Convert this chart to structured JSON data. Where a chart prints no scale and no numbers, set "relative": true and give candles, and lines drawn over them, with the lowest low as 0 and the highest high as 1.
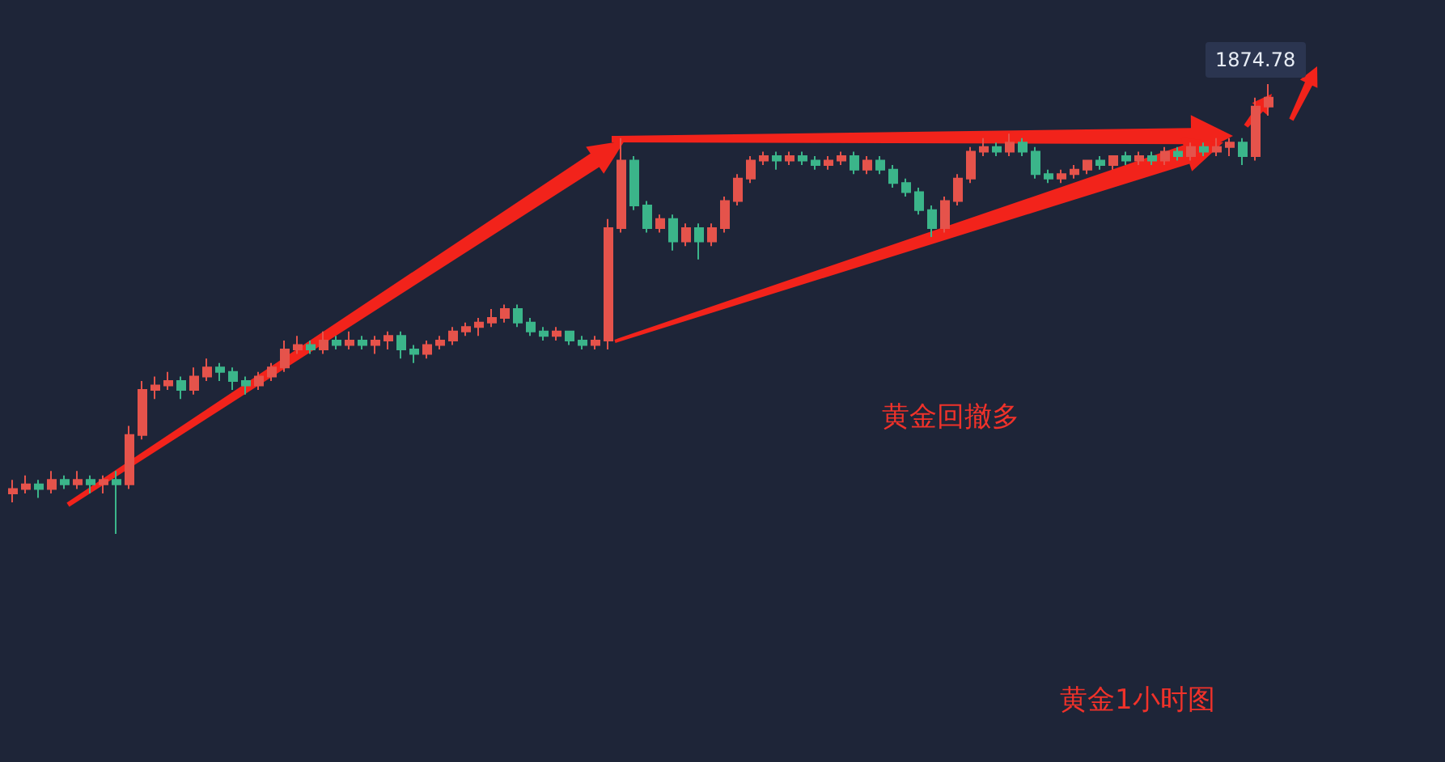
{
  "chart_data": {
    "type": "candlestick",
    "relative": true,
    "grid": false,
    "annotations": [
      "黄金回撤多",
      "黄金1小时图",
      "1874.78"
    ],
    "categories": [
      null,
      null,
      null,
      null,
      null,
      null,
      null,
      null,
      null,
      null,
      null,
      null,
      null,
      null,
      null,
      null,
      null,
      null,
      null,
      null,
      null,
      null,
      null,
      null,
      null,
      null,
      null,
      null,
      null,
      null,
      null,
      null,
      null,
      null,
      null,
      null,
      null,
      null,
      null,
      null,
      null,
      null,
      null,
      null,
      null,
      null,
      null,
      null,
      null,
      null,
      null,
      null,
      null,
      null,
      null,
      null,
      null,
      null,
      null,
      null,
      null,
      null,
      null,
      null,
      null,
      null,
      null,
      null,
      null,
      null,
      null,
      null,
      null,
      null,
      null,
      null,
      null,
      null,
      null,
      null,
      null,
      null,
      null,
      null,
      null,
      null,
      null,
      null,
      null,
      null,
      null,
      null,
      null,
      null,
      null,
      null,
      null,
      null
    ],
    "ohlc": [
      [
        0.09,
        0.12,
        0.07,
        0.1
      ],
      [
        0.1,
        0.13,
        0.09,
        0.11
      ],
      [
        0.11,
        0.12,
        0.08,
        0.1
      ],
      [
        0.1,
        0.14,
        0.09,
        0.12
      ],
      [
        0.12,
        0.13,
        0.1,
        0.11
      ],
      [
        0.11,
        0.14,
        0.1,
        0.12
      ],
      [
        0.12,
        0.13,
        0.09,
        0.11
      ],
      [
        0.11,
        0.13,
        0.09,
        0.12
      ],
      [
        0.12,
        0.14,
        0.0,
        0.11
      ],
      [
        0.11,
        0.24,
        0.1,
        0.22
      ],
      [
        0.22,
        0.34,
        0.21,
        0.32
      ],
      [
        0.32,
        0.35,
        0.3,
        0.33
      ],
      [
        0.33,
        0.36,
        0.32,
        0.34
      ],
      [
        0.34,
        0.35,
        0.3,
        0.32
      ],
      [
        0.32,
        0.37,
        0.31,
        0.35
      ],
      [
        0.35,
        0.39,
        0.34,
        0.37
      ],
      [
        0.37,
        0.38,
        0.34,
        0.36
      ],
      [
        0.36,
        0.37,
        0.32,
        0.34
      ],
      [
        0.34,
        0.35,
        0.31,
        0.33
      ],
      [
        0.33,
        0.36,
        0.32,
        0.35
      ],
      [
        0.35,
        0.38,
        0.34,
        0.37
      ],
      [
        0.37,
        0.43,
        0.36,
        0.41
      ],
      [
        0.41,
        0.44,
        0.4,
        0.42
      ],
      [
        0.42,
        0.43,
        0.4,
        0.41
      ],
      [
        0.41,
        0.45,
        0.4,
        0.43
      ],
      [
        0.43,
        0.44,
        0.41,
        0.42
      ],
      [
        0.42,
        0.45,
        0.41,
        0.43
      ],
      [
        0.43,
        0.44,
        0.41,
        0.42
      ],
      [
        0.42,
        0.44,
        0.4,
        0.43
      ],
      [
        0.43,
        0.45,
        0.41,
        0.44
      ],
      [
        0.44,
        0.45,
        0.39,
        0.41
      ],
      [
        0.41,
        0.42,
        0.38,
        0.4
      ],
      [
        0.4,
        0.43,
        0.39,
        0.42
      ],
      [
        0.42,
        0.44,
        0.41,
        0.43
      ],
      [
        0.43,
        0.46,
        0.42,
        0.45
      ],
      [
        0.45,
        0.47,
        0.44,
        0.46
      ],
      [
        0.46,
        0.48,
        0.44,
        0.47
      ],
      [
        0.47,
        0.5,
        0.46,
        0.48
      ],
      [
        0.48,
        0.51,
        0.47,
        0.5
      ],
      [
        0.5,
        0.51,
        0.46,
        0.47
      ],
      [
        0.47,
        0.48,
        0.44,
        0.45
      ],
      [
        0.45,
        0.46,
        0.43,
        0.44
      ],
      [
        0.44,
        0.46,
        0.43,
        0.45
      ],
      [
        0.45,
        0.45,
        0.42,
        0.43
      ],
      [
        0.43,
        0.44,
        0.41,
        0.42
      ],
      [
        0.42,
        0.44,
        0.41,
        0.43
      ],
      [
        0.43,
        0.7,
        0.41,
        0.68
      ],
      [
        0.68,
        0.88,
        0.67,
        0.83
      ],
      [
        0.83,
        0.84,
        0.72,
        0.73
      ],
      [
        0.73,
        0.74,
        0.67,
        0.68
      ],
      [
        0.68,
        0.71,
        0.67,
        0.7
      ],
      [
        0.7,
        0.71,
        0.63,
        0.65
      ],
      [
        0.65,
        0.69,
        0.64,
        0.68
      ],
      [
        0.68,
        0.69,
        0.61,
        0.65
      ],
      [
        0.65,
        0.69,
        0.64,
        0.68
      ],
      [
        0.68,
        0.75,
        0.67,
        0.74
      ],
      [
        0.74,
        0.8,
        0.73,
        0.79
      ],
      [
        0.79,
        0.84,
        0.78,
        0.83
      ],
      [
        0.83,
        0.85,
        0.82,
        0.84
      ],
      [
        0.84,
        0.85,
        0.81,
        0.83
      ],
      [
        0.83,
        0.85,
        0.82,
        0.84
      ],
      [
        0.84,
        0.85,
        0.82,
        0.83
      ],
      [
        0.83,
        0.84,
        0.81,
        0.82
      ],
      [
        0.82,
        0.84,
        0.81,
        0.83
      ],
      [
        0.83,
        0.85,
        0.82,
        0.84
      ],
      [
        0.84,
        0.85,
        0.8,
        0.81
      ],
      [
        0.81,
        0.84,
        0.8,
        0.83
      ],
      [
        0.83,
        0.84,
        0.8,
        0.81
      ],
      [
        0.81,
        0.82,
        0.77,
        0.78
      ],
      [
        0.78,
        0.79,
        0.75,
        0.76
      ],
      [
        0.76,
        0.77,
        0.71,
        0.72
      ],
      [
        0.72,
        0.73,
        0.66,
        0.68
      ],
      [
        0.68,
        0.75,
        0.67,
        0.74
      ],
      [
        0.74,
        0.8,
        0.73,
        0.79
      ],
      [
        0.79,
        0.86,
        0.78,
        0.85
      ],
      [
        0.85,
        0.88,
        0.84,
        0.86
      ],
      [
        0.86,
        0.87,
        0.84,
        0.85
      ],
      [
        0.85,
        0.89,
        0.84,
        0.87
      ],
      [
        0.87,
        0.88,
        0.84,
        0.85
      ],
      [
        0.85,
        0.86,
        0.79,
        0.8
      ],
      [
        0.8,
        0.81,
        0.78,
        0.79
      ],
      [
        0.79,
        0.81,
        0.78,
        0.8
      ],
      [
        0.8,
        0.82,
        0.79,
        0.81
      ],
      [
        0.81,
        0.83,
        0.8,
        0.83
      ],
      [
        0.83,
        0.84,
        0.81,
        0.82
      ],
      [
        0.82,
        0.84,
        0.81,
        0.84
      ],
      [
        0.84,
        0.85,
        0.82,
        0.83
      ],
      [
        0.83,
        0.85,
        0.82,
        0.84
      ],
      [
        0.84,
        0.85,
        0.82,
        0.83
      ],
      [
        0.83,
        0.86,
        0.82,
        0.85
      ],
      [
        0.85,
        0.86,
        0.83,
        0.84
      ],
      [
        0.84,
        0.87,
        0.83,
        0.86
      ],
      [
        0.86,
        0.87,
        0.84,
        0.85
      ],
      [
        0.85,
        0.88,
        0.84,
        0.86
      ],
      [
        0.86,
        0.88,
        0.84,
        0.87
      ],
      [
        0.87,
        0.88,
        0.82,
        0.84
      ],
      [
        0.84,
        0.97,
        0.83,
        0.95
      ],
      [
        0.95,
        1.0,
        0.93,
        0.97
      ]
    ]
  }
}
